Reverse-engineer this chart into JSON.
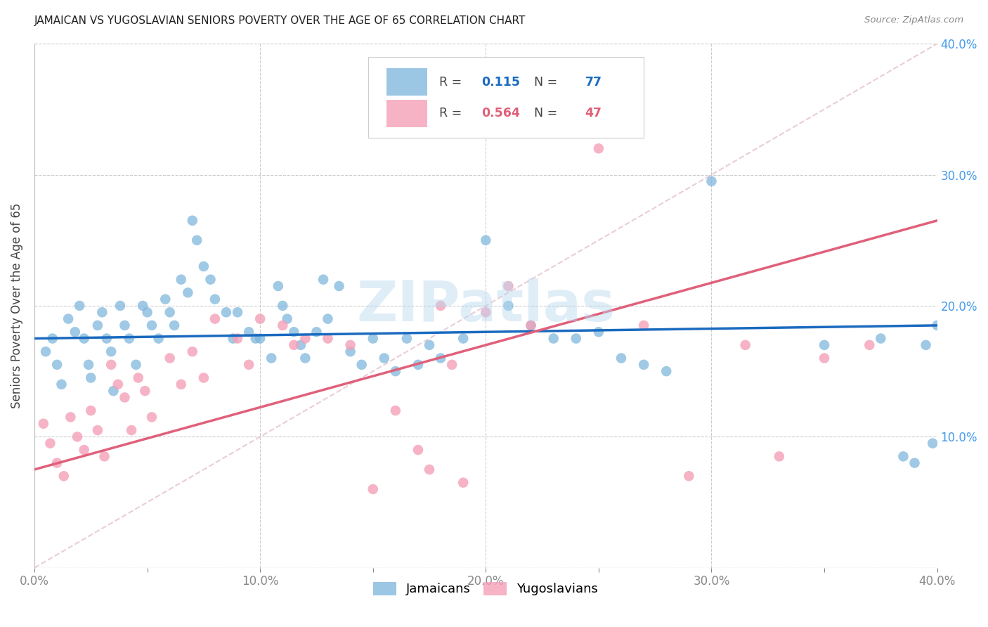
{
  "title": "JAMAICAN VS YUGOSLAVIAN SENIORS POVERTY OVER THE AGE OF 65 CORRELATION CHART",
  "source": "Source: ZipAtlas.com",
  "ylabel": "Seniors Poverty Over the Age of 65",
  "xlim": [
    0.0,
    0.4
  ],
  "ylim": [
    0.0,
    0.4
  ],
  "yticks": [
    0.0,
    0.1,
    0.2,
    0.3,
    0.4
  ],
  "xticks_minor": [
    0.0,
    0.05,
    0.1,
    0.15,
    0.2,
    0.25,
    0.3,
    0.35,
    0.4
  ],
  "xticks_major": [
    0.0,
    0.1,
    0.2,
    0.3,
    0.4
  ],
  "jamaicans_R": 0.115,
  "jamaicans_N": 77,
  "yugoslavians_R": 0.564,
  "yugoslavians_N": 47,
  "jamaican_color": "#7ab4dc",
  "yugoslavian_color": "#f4a0b8",
  "jamaican_line_color": "#1a6abf",
  "yugoslavian_line_color": "#e0607a",
  "diagonal_color": "#e0b8c8",
  "watermark": "ZIPatlas",
  "jamaicans_x": [
    0.005,
    0.008,
    0.01,
    0.012,
    0.015,
    0.018,
    0.02,
    0.022,
    0.024,
    0.025,
    0.028,
    0.03,
    0.032,
    0.034,
    0.035,
    0.038,
    0.04,
    0.042,
    0.045,
    0.048,
    0.05,
    0.052,
    0.055,
    0.058,
    0.06,
    0.062,
    0.065,
    0.068,
    0.07,
    0.072,
    0.075,
    0.078,
    0.08,
    0.085,
    0.088,
    0.09,
    0.095,
    0.098,
    0.1,
    0.105,
    0.108,
    0.11,
    0.112,
    0.115,
    0.118,
    0.12,
    0.125,
    0.128,
    0.13,
    0.135,
    0.14,
    0.145,
    0.15,
    0.155,
    0.16,
    0.165,
    0.17,
    0.175,
    0.18,
    0.19,
    0.2,
    0.21,
    0.22,
    0.23,
    0.24,
    0.25,
    0.26,
    0.27,
    0.28,
    0.3,
    0.35,
    0.375,
    0.385,
    0.39,
    0.395,
    0.398,
    0.4
  ],
  "jamaicans_y": [
    0.165,
    0.175,
    0.155,
    0.14,
    0.19,
    0.18,
    0.2,
    0.175,
    0.155,
    0.145,
    0.185,
    0.195,
    0.175,
    0.165,
    0.135,
    0.2,
    0.185,
    0.175,
    0.155,
    0.2,
    0.195,
    0.185,
    0.175,
    0.205,
    0.195,
    0.185,
    0.22,
    0.21,
    0.265,
    0.25,
    0.23,
    0.22,
    0.205,
    0.195,
    0.175,
    0.195,
    0.18,
    0.175,
    0.175,
    0.16,
    0.215,
    0.2,
    0.19,
    0.18,
    0.17,
    0.16,
    0.18,
    0.22,
    0.19,
    0.215,
    0.165,
    0.155,
    0.175,
    0.16,
    0.15,
    0.175,
    0.155,
    0.17,
    0.16,
    0.175,
    0.25,
    0.2,
    0.185,
    0.175,
    0.175,
    0.18,
    0.16,
    0.155,
    0.15,
    0.295,
    0.17,
    0.175,
    0.085,
    0.08,
    0.17,
    0.095,
    0.185
  ],
  "yugoslavians_x": [
    0.004,
    0.007,
    0.01,
    0.013,
    0.016,
    0.019,
    0.022,
    0.025,
    0.028,
    0.031,
    0.034,
    0.037,
    0.04,
    0.043,
    0.046,
    0.049,
    0.052,
    0.06,
    0.065,
    0.07,
    0.075,
    0.08,
    0.09,
    0.095,
    0.1,
    0.11,
    0.115,
    0.12,
    0.13,
    0.14,
    0.15,
    0.16,
    0.17,
    0.175,
    0.18,
    0.185,
    0.19,
    0.2,
    0.21,
    0.22,
    0.25,
    0.27,
    0.29,
    0.315,
    0.33,
    0.35,
    0.37
  ],
  "yugoslavians_y": [
    0.11,
    0.095,
    0.08,
    0.07,
    0.115,
    0.1,
    0.09,
    0.12,
    0.105,
    0.085,
    0.155,
    0.14,
    0.13,
    0.105,
    0.145,
    0.135,
    0.115,
    0.16,
    0.14,
    0.165,
    0.145,
    0.19,
    0.175,
    0.155,
    0.19,
    0.185,
    0.17,
    0.175,
    0.175,
    0.17,
    0.06,
    0.12,
    0.09,
    0.075,
    0.2,
    0.155,
    0.065,
    0.195,
    0.215,
    0.185,
    0.32,
    0.185,
    0.07,
    0.17,
    0.085,
    0.16,
    0.17
  ]
}
